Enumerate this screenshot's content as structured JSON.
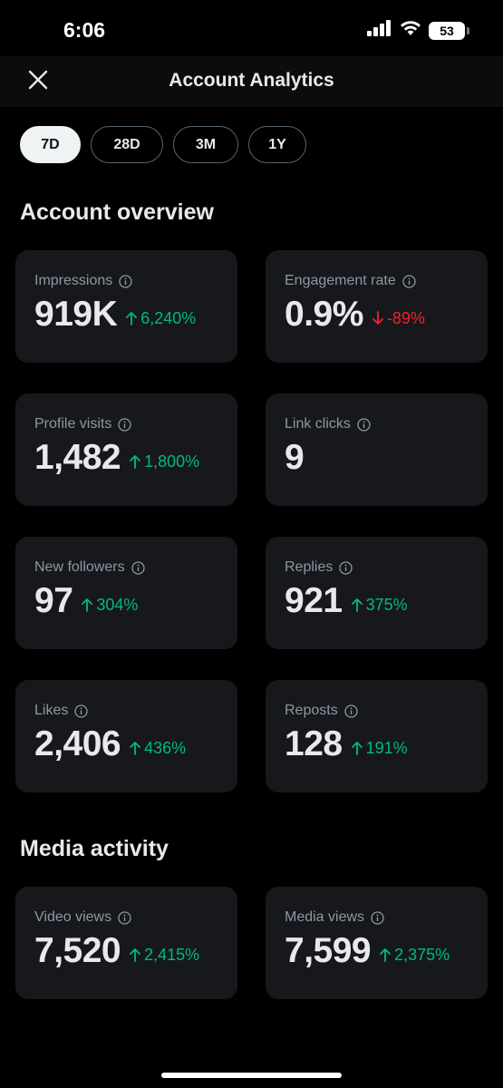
{
  "status_bar": {
    "time": "6:06",
    "battery": "53",
    "icons": [
      "cellular-signal-icon",
      "wifi-icon",
      "battery-icon"
    ]
  },
  "header": {
    "title": "Account Analytics",
    "close_icon": "close-icon"
  },
  "tabs": [
    {
      "label": "7D",
      "active": true
    },
    {
      "label": "28D",
      "active": false
    },
    {
      "label": "3M",
      "active": false
    },
    {
      "label": "1Y",
      "active": false
    }
  ],
  "overview": {
    "title": "Account overview",
    "cards": [
      {
        "label": "Impressions",
        "value": "919K",
        "change": "6,240%",
        "direction": "up"
      },
      {
        "label": "Engagement rate",
        "value": "0.9%",
        "change": "-89%",
        "direction": "down"
      },
      {
        "label": "Profile visits",
        "value": "1,482",
        "change": "1,800%",
        "direction": "up"
      },
      {
        "label": "Link clicks",
        "value": "9",
        "change": "",
        "direction": "none"
      },
      {
        "label": "New followers",
        "value": "97",
        "change": "304%",
        "direction": "up"
      },
      {
        "label": "Replies",
        "value": "921",
        "change": "375%",
        "direction": "up"
      },
      {
        "label": "Likes",
        "value": "2,406",
        "change": "436%",
        "direction": "up"
      },
      {
        "label": "Reposts",
        "value": "128",
        "change": "191%",
        "direction": "up"
      }
    ]
  },
  "media": {
    "title": "Media activity",
    "cards": [
      {
        "label": "Video views",
        "value": "7,520",
        "change": "2,415%",
        "direction": "up"
      },
      {
        "label": "Media views",
        "value": "7,599",
        "change": "2,375%",
        "direction": "up"
      }
    ]
  },
  "colors": {
    "background": "#000000",
    "card": "#16181c",
    "positive": "#00ba7c",
    "negative": "#f4212e",
    "muted_text": "#8b98a5",
    "primary_text": "#e7e9ea"
  }
}
